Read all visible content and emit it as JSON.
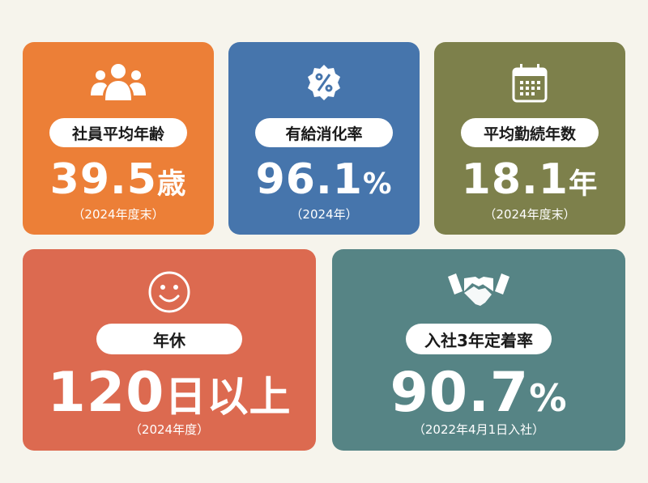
{
  "colors": {
    "background": "#f6f4ec",
    "orange": "#ec7f37",
    "blue": "#4675ac",
    "olive": "#7d804b",
    "coral": "#dc6a50",
    "teal": "#568485"
  },
  "cards": [
    {
      "icon": "people-group-icon",
      "label": "社員平均年齢",
      "value": "39.5",
      "unit": "歳",
      "note": "（2024年度末）"
    },
    {
      "icon": "percent-badge-icon",
      "label": "有給消化率",
      "value": "96.1",
      "unit": "%",
      "note": "（2024年）"
    },
    {
      "icon": "calendar-icon",
      "label": "平均勤続年数",
      "value": "18.1",
      "unit": "年",
      "note": "（2024年度末）"
    },
    {
      "icon": "smiley-face-icon",
      "label": "年休",
      "value": "120",
      "unit": "日以上",
      "note": "（2024年度）"
    },
    {
      "icon": "handshake-icon",
      "label": "入社3年定着率",
      "value": "90.7",
      "unit": "%",
      "note": "（2022年4月1日入社）"
    }
  ]
}
